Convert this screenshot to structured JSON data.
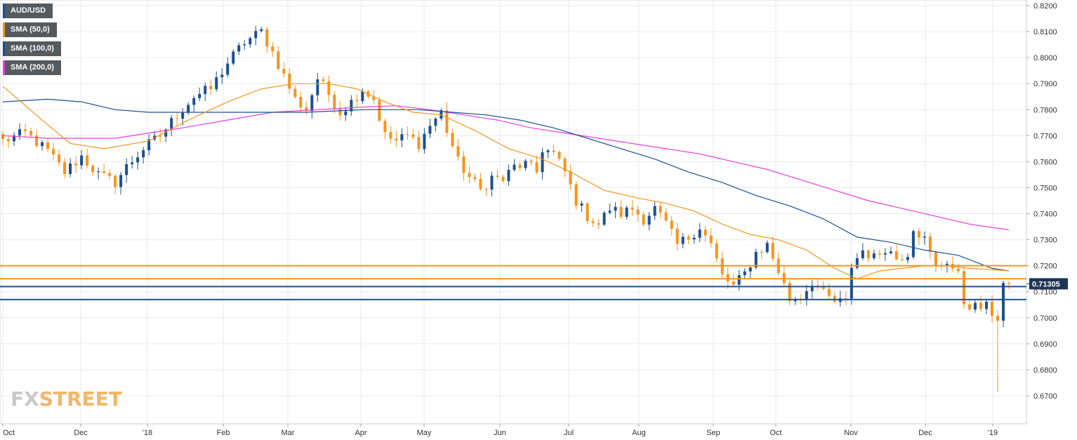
{
  "legend": [
    {
      "label": "AUD/USD",
      "color": "#1d4f91"
    },
    {
      "label": "SMA (50,0)",
      "color": "#f7941d"
    },
    {
      "label": "SMA (100,0)",
      "color": "#1d4f91"
    },
    {
      "label": "SMA (200,0)",
      "color": "#e53ee0"
    }
  ],
  "watermark": {
    "part1": "FX",
    "part2": "STREET"
  },
  "colors": {
    "up": "#1d4f91",
    "down": "#f7941d",
    "sma50": "#f7941d",
    "sma100": "#1d4f91",
    "sma200": "#e53ee0",
    "grid": "#e8eaed"
  },
  "chart_data": {
    "type": "candlestick",
    "symbol": "AUD/USD",
    "ylim": [
      0.66,
      0.82
    ],
    "y_ticks": [
      "0.8200",
      "0.8100",
      "0.8000",
      "0.7900",
      "0.7800",
      "0.7700",
      "0.7600",
      "0.7500",
      "0.7400",
      "0.7300",
      "0.7200",
      "0.7100",
      "0.7000",
      "0.6900",
      "0.6800",
      "0.6700"
    ],
    "x_ticks": [
      "Oct",
      "Dec",
      "'18",
      "Feb",
      "Mar",
      "Apr",
      "May",
      "Jun",
      "Jul",
      "Aug",
      "Sep",
      "Oct",
      "Nov",
      "Dec",
      "'19"
    ],
    "last_price": "0.71305",
    "horizontal_levels": [
      {
        "value": 0.72,
        "color": "#f7941d"
      },
      {
        "value": 0.715,
        "color": "#f7941d"
      },
      {
        "value": 0.712,
        "color": "#1d4f91"
      },
      {
        "value": 0.707,
        "color": "#1d4f91"
      }
    ],
    "close_path": [
      [
        0,
        0.768
      ],
      [
        4,
        0.771
      ],
      [
        8,
        0.764
      ],
      [
        11,
        0.756
      ],
      [
        14,
        0.762
      ],
      [
        17,
        0.755
      ],
      [
        20,
        0.752
      ],
      [
        22,
        0.758
      ],
      [
        25,
        0.765
      ],
      [
        28,
        0.77
      ],
      [
        31,
        0.778
      ],
      [
        34,
        0.785
      ],
      [
        37,
        0.788
      ],
      [
        40,
        0.798
      ],
      [
        43,
        0.806
      ],
      [
        46,
        0.81
      ],
      [
        48,
        0.802
      ],
      [
        50,
        0.793
      ],
      [
        52,
        0.784
      ],
      [
        54,
        0.78
      ],
      [
        56,
        0.792
      ],
      [
        58,
        0.786
      ],
      [
        60,
        0.779
      ],
      [
        62,
        0.783
      ],
      [
        64,
        0.788
      ],
      [
        66,
        0.784
      ],
      [
        68,
        0.77
      ],
      [
        70,
        0.768
      ],
      [
        72,
        0.77
      ],
      [
        74,
        0.767
      ],
      [
        76,
        0.774
      ],
      [
        78,
        0.779
      ],
      [
        79,
        0.772
      ],
      [
        81,
        0.76
      ],
      [
        83,
        0.754
      ],
      [
        85,
        0.749
      ],
      [
        87,
        0.754
      ],
      [
        89,
        0.753
      ],
      [
        91,
        0.758
      ],
      [
        93,
        0.759
      ],
      [
        95,
        0.756
      ],
      [
        96,
        0.765
      ],
      [
        98,
        0.763
      ],
      [
        100,
        0.756
      ],
      [
        102,
        0.745
      ],
      [
        104,
        0.739
      ],
      [
        106,
        0.736
      ],
      [
        108,
        0.742
      ],
      [
        110,
        0.74
      ],
      [
        112,
        0.742
      ],
      [
        114,
        0.738
      ],
      [
        116,
        0.742
      ],
      [
        118,
        0.736
      ],
      [
        120,
        0.728
      ],
      [
        122,
        0.731
      ],
      [
        124,
        0.735
      ],
      [
        126,
        0.728
      ],
      [
        128,
        0.716
      ],
      [
        130,
        0.712
      ],
      [
        132,
        0.717
      ],
      [
        134,
        0.725
      ],
      [
        136,
        0.728
      ],
      [
        138,
        0.718
      ],
      [
        140,
        0.707
      ],
      [
        142,
        0.708
      ],
      [
        144,
        0.714
      ],
      [
        146,
        0.709
      ],
      [
        148,
        0.706
      ],
      [
        150,
        0.706
      ],
      [
        151,
        0.72
      ],
      [
        153,
        0.726
      ],
      [
        155,
        0.723
      ],
      [
        157,
        0.727
      ],
      [
        159,
        0.723
      ],
      [
        161,
        0.725
      ],
      [
        162,
        0.735
      ],
      [
        164,
        0.73
      ],
      [
        166,
        0.719
      ],
      [
        168,
        0.722
      ],
      [
        170,
        0.716
      ],
      [
        171,
        0.706
      ],
      [
        173,
        0.704
      ],
      [
        175,
        0.704
      ],
      [
        177,
        0.7
      ],
      [
        178,
        0.713
      ],
      [
        179,
        0.7131
      ]
    ],
    "flash_crash": {
      "candle": 177,
      "low": 0.6715
    },
    "sma50": [
      [
        0,
        0.789
      ],
      [
        7,
        0.776
      ],
      [
        12,
        0.767
      ],
      [
        18,
        0.765
      ],
      [
        26,
        0.768
      ],
      [
        33,
        0.776
      ],
      [
        40,
        0.783
      ],
      [
        46,
        0.788
      ],
      [
        52,
        0.79
      ],
      [
        58,
        0.79
      ],
      [
        63,
        0.788
      ],
      [
        68,
        0.783
      ],
      [
        73,
        0.779
      ],
      [
        78,
        0.778
      ],
      [
        84,
        0.772
      ],
      [
        90,
        0.765
      ],
      [
        96,
        0.761
      ],
      [
        101,
        0.756
      ],
      [
        107,
        0.749
      ],
      [
        113,
        0.746
      ],
      [
        118,
        0.744
      ],
      [
        123,
        0.741
      ],
      [
        128,
        0.736
      ],
      [
        133,
        0.732
      ],
      [
        138,
        0.73
      ],
      [
        143,
        0.726
      ],
      [
        148,
        0.719
      ],
      [
        152,
        0.715
      ],
      [
        156,
        0.718
      ],
      [
        160,
        0.719
      ],
      [
        164,
        0.72
      ],
      [
        168,
        0.72
      ],
      [
        172,
        0.719
      ],
      [
        176,
        0.7185
      ],
      [
        179,
        0.718
      ]
    ],
    "sma100": [
      [
        0,
        0.783
      ],
      [
        8,
        0.784
      ],
      [
        14,
        0.783
      ],
      [
        20,
        0.78
      ],
      [
        26,
        0.779
      ],
      [
        34,
        0.779
      ],
      [
        44,
        0.779
      ],
      [
        54,
        0.779
      ],
      [
        64,
        0.78
      ],
      [
        74,
        0.78
      ],
      [
        80,
        0.779
      ],
      [
        86,
        0.778
      ],
      [
        92,
        0.776
      ],
      [
        98,
        0.773
      ],
      [
        104,
        0.769
      ],
      [
        110,
        0.765
      ],
      [
        116,
        0.761
      ],
      [
        122,
        0.756
      ],
      [
        128,
        0.752
      ],
      [
        134,
        0.747
      ],
      [
        140,
        0.743
      ],
      [
        146,
        0.738
      ],
      [
        152,
        0.731
      ],
      [
        158,
        0.729
      ],
      [
        164,
        0.726
      ],
      [
        170,
        0.724
      ],
      [
        176,
        0.719
      ],
      [
        179,
        0.718
      ]
    ],
    "sma200": [
      [
        0,
        0.77
      ],
      [
        8,
        0.769
      ],
      [
        14,
        0.769
      ],
      [
        20,
        0.769
      ],
      [
        26,
        0.771
      ],
      [
        32,
        0.773
      ],
      [
        40,
        0.776
      ],
      [
        48,
        0.779
      ],
      [
        56,
        0.78
      ],
      [
        64,
        0.781
      ],
      [
        70,
        0.7815
      ],
      [
        76,
        0.78
      ],
      [
        82,
        0.778
      ],
      [
        88,
        0.776
      ],
      [
        94,
        0.773
      ],
      [
        100,
        0.771
      ],
      [
        106,
        0.769
      ],
      [
        112,
        0.767
      ],
      [
        118,
        0.765
      ],
      [
        124,
        0.763
      ],
      [
        130,
        0.76
      ],
      [
        136,
        0.757
      ],
      [
        142,
        0.753
      ],
      [
        148,
        0.749
      ],
      [
        154,
        0.745
      ],
      [
        160,
        0.742
      ],
      [
        166,
        0.739
      ],
      [
        172,
        0.736
      ],
      [
        179,
        0.7338
      ]
    ]
  }
}
